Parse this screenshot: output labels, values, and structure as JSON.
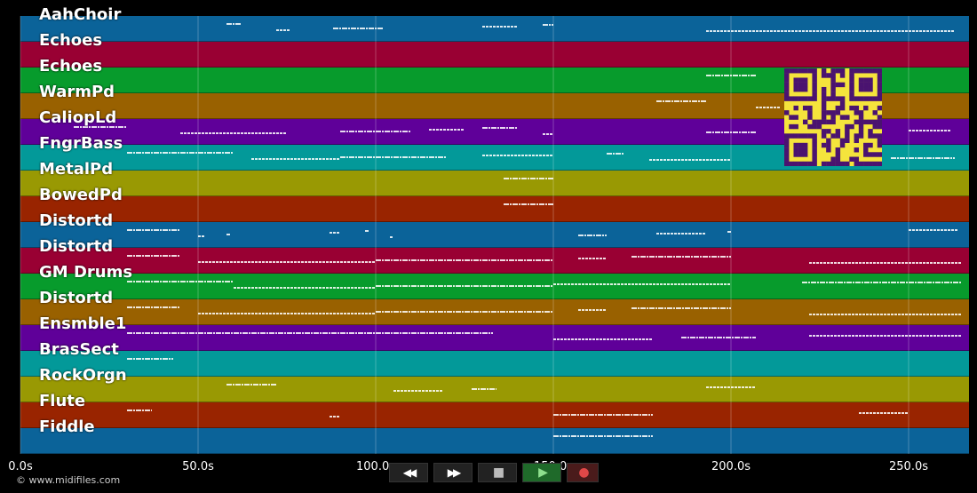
{
  "tracks": [
    {
      "label": "AahChoir",
      "color": "#0b6399"
    },
    {
      "label": "Echoes",
      "color": "#990033"
    },
    {
      "label": "Echoes",
      "color": "#079b2c"
    },
    {
      "label": "WarmPd",
      "color": "#996100"
    },
    {
      "label": "CaliopLd",
      "color": "#5f0099"
    },
    {
      "label": "FngrBass",
      "color": "#039999"
    },
    {
      "label": "MetalPd",
      "color": "#999903"
    },
    {
      "label": "BowedPd",
      "color": "#992400"
    },
    {
      "label": "Distortd",
      "color": "#0b6399"
    },
    {
      "label": "Distortd",
      "color": "#990033"
    },
    {
      "label": "GM Drums",
      "color": "#079b2c"
    },
    {
      "label": "Distortd",
      "color": "#996100"
    },
    {
      "label": "Ensmble1",
      "color": "#5f0099"
    },
    {
      "label": "BrasSect",
      "color": "#039999"
    },
    {
      "label": "RockOrgn",
      "color": "#999903"
    },
    {
      "label": "Flute",
      "color": "#992400"
    },
    {
      "label": "Fiddle",
      "color": "#0b6399"
    }
  ],
  "timeline": {
    "ticks": [
      "0.0s",
      "50.0s",
      "100.0s",
      "150.0s",
      "200.0s",
      "250.0s"
    ],
    "tick_seconds": [
      0,
      50,
      100,
      150,
      200,
      250
    ],
    "max_seconds": 267
  },
  "copyright": "© www.midifiles.com",
  "transport": [
    {
      "name": "rewind-button",
      "icon": "rewind-icon",
      "glyph": "◀◀"
    },
    {
      "name": "fast-forward-button",
      "icon": "fast-forward-icon",
      "glyph": "▶▶"
    },
    {
      "name": "stop-button",
      "icon": "stop-icon",
      "glyph": "■"
    },
    {
      "name": "play-button",
      "icon": "play-icon",
      "glyph": "▶"
    },
    {
      "name": "record-button",
      "icon": "record-icon",
      "glyph": "●"
    }
  ],
  "note_segments": [
    [
      [
        58,
        62
      ],
      [
        72,
        76
      ],
      [
        88,
        102
      ],
      [
        130,
        140
      ],
      [
        147,
        150
      ],
      [
        193,
        263
      ]
    ],
    [],
    [
      [
        193,
        207
      ]
    ],
    [
      [
        179,
        193
      ],
      [
        207,
        214
      ]
    ],
    [
      [
        15,
        30
      ],
      [
        45,
        75
      ],
      [
        90,
        110
      ],
      [
        115,
        125
      ],
      [
        130,
        140
      ],
      [
        147,
        150
      ],
      [
        193,
        207
      ],
      [
        250,
        262
      ]
    ],
    [
      [
        30,
        60
      ],
      [
        65,
        90
      ],
      [
        90,
        120
      ],
      [
        130,
        150
      ],
      [
        165,
        170
      ],
      [
        177,
        200
      ],
      [
        245,
        263
      ]
    ],
    [
      [
        136,
        150
      ]
    ],
    [
      [
        136,
        150
      ]
    ],
    [
      [
        30,
        45
      ],
      [
        50,
        52
      ],
      [
        58,
        59
      ],
      [
        87,
        90
      ],
      [
        97,
        98
      ],
      [
        104,
        105
      ],
      [
        157,
        165
      ],
      [
        179,
        193
      ],
      [
        199,
        200
      ],
      [
        250,
        264
      ]
    ],
    [
      [
        30,
        45
      ],
      [
        50,
        100
      ],
      [
        100,
        150
      ],
      [
        157,
        165
      ],
      [
        172,
        200
      ],
      [
        222,
        265
      ]
    ],
    [
      [
        30,
        60
      ],
      [
        60,
        100
      ],
      [
        100,
        150
      ],
      [
        150,
        200
      ],
      [
        220,
        265
      ]
    ],
    [
      [
        30,
        45
      ],
      [
        50,
        100
      ],
      [
        100,
        150
      ],
      [
        157,
        165
      ],
      [
        172,
        200
      ],
      [
        222,
        265
      ]
    ],
    [
      [
        30,
        133
      ],
      [
        150,
        178
      ],
      [
        186,
        207
      ],
      [
        222,
        265
      ]
    ],
    [
      [
        30,
        43
      ]
    ],
    [
      [
        58,
        72
      ],
      [
        105,
        119
      ],
      [
        127,
        134
      ],
      [
        193,
        207
      ]
    ],
    [
      [
        30,
        37
      ],
      [
        87,
        90
      ],
      [
        150,
        178
      ],
      [
        236,
        250
      ]
    ],
    [
      [
        150,
        178
      ]
    ]
  ]
}
